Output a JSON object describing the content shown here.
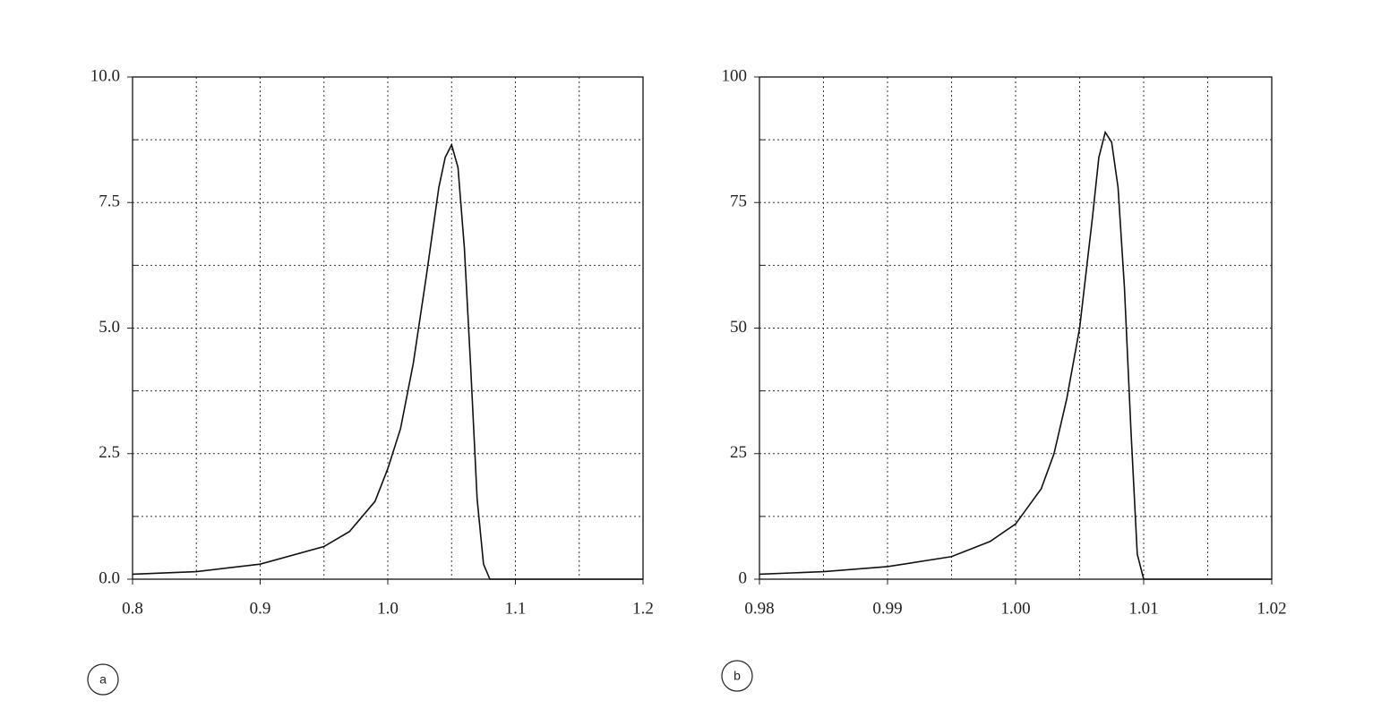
{
  "chart_data": [
    {
      "type": "line",
      "label": "a",
      "xlim": [
        0.8,
        1.2
      ],
      "ylim": [
        0,
        10
      ],
      "xticks": [
        0.8,
        0.9,
        {
          "value": 1.0,
          "label": "1.0"
        },
        1.1,
        1.2
      ],
      "yticks": [
        {
          "value": 0,
          "label": "0.0"
        },
        2.5,
        {
          "value": 5,
          "label": "5.0"
        },
        7.5,
        {
          "value": 10,
          "label": "10.0"
        }
      ],
      "minor_xticks": [
        0.85,
        0.95,
        1.05,
        1.15
      ],
      "minor_yticks": [
        1.25,
        3.75,
        6.25,
        8.75
      ],
      "grid": true,
      "color": "#111111",
      "x": [
        0.8,
        0.85,
        0.9,
        0.95,
        0.97,
        0.99,
        1.0,
        1.01,
        1.02,
        1.03,
        1.04,
        1.045,
        1.05,
        1.055,
        1.06,
        1.065,
        1.07,
        1.075,
        1.08,
        1.2
      ],
      "values": [
        0.1,
        0.15,
        0.3,
        0.65,
        0.95,
        1.55,
        2.2,
        3.0,
        4.3,
        6.0,
        7.8,
        8.4,
        8.65,
        8.2,
        6.6,
        4.2,
        1.6,
        0.3,
        0.0,
        0.0
      ]
    },
    {
      "type": "line",
      "label": "b",
      "xlim": [
        0.98,
        1.02
      ],
      "ylim": [
        0,
        100
      ],
      "xticks": [
        0.98,
        0.99,
        {
          "value": 1.0,
          "label": "1.00"
        },
        1.01,
        1.02
      ],
      "yticks": [
        0,
        25,
        50,
        75,
        100
      ],
      "minor_xticks": [
        0.985,
        0.995,
        1.005,
        1.015
      ],
      "minor_yticks": [
        12.5,
        37.5,
        62.5,
        87.5
      ],
      "grid": true,
      "color": "#111111",
      "x": [
        0.98,
        0.985,
        0.99,
        0.995,
        0.998,
        1.0,
        1.002,
        1.003,
        1.004,
        1.005,
        1.006,
        1.0065,
        1.007,
        1.0075,
        1.008,
        1.0085,
        1.009,
        1.0095,
        1.01,
        1.02
      ],
      "values": [
        1,
        1.5,
        2.5,
        4.5,
        7.5,
        11,
        18,
        25,
        36,
        50,
        72,
        84,
        89,
        87,
        78,
        58,
        30,
        5,
        0,
        0
      ]
    }
  ]
}
